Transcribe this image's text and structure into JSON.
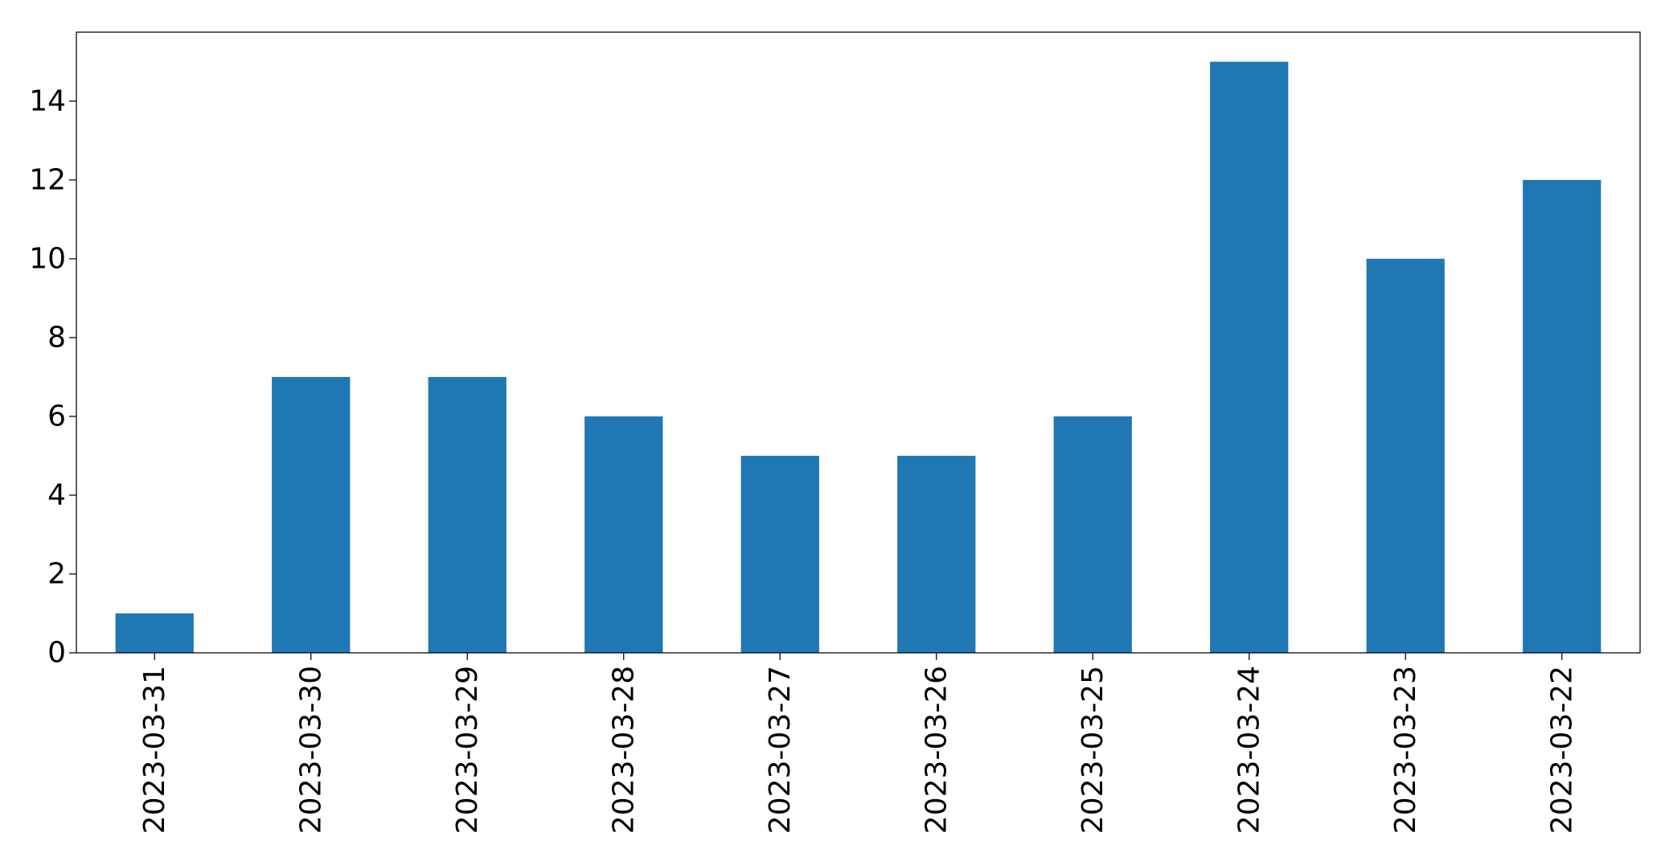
{
  "chart_data": {
    "type": "bar",
    "title": "",
    "xlabel": "",
    "ylabel": "",
    "categories": [
      "2023-03-31",
      "2023-03-30",
      "2023-03-29",
      "2023-03-28",
      "2023-03-27",
      "2023-03-26",
      "2023-03-25",
      "2023-03-24",
      "2023-03-23",
      "2023-03-22"
    ],
    "values": [
      1,
      7,
      7,
      6,
      5,
      5,
      6,
      15,
      10,
      12
    ],
    "ylim": [
      0,
      15.75
    ],
    "yticks": [
      0,
      2,
      4,
      6,
      8,
      10,
      12,
      14
    ],
    "ytick_labels": [
      "0",
      "2",
      "4",
      "6",
      "8",
      "10",
      "12",
      "14"
    ],
    "bar_color": "#1f77b4",
    "grid": false,
    "legend": "none"
  }
}
